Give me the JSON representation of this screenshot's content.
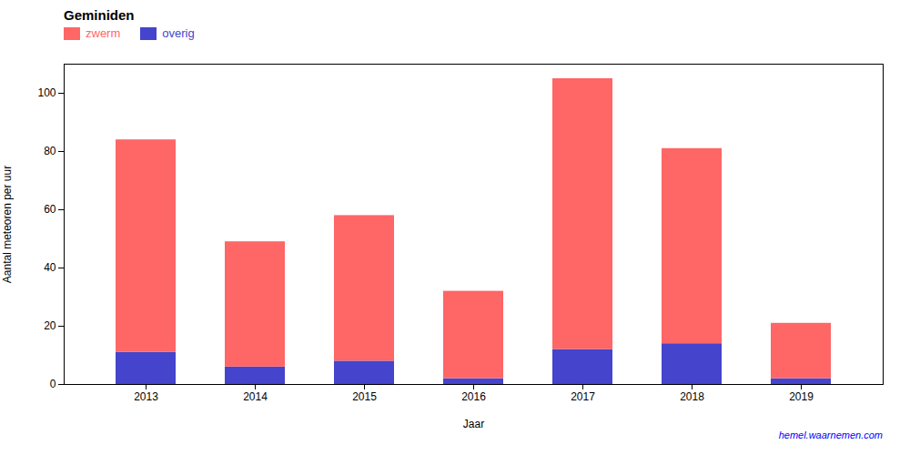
{
  "chart_data": {
    "type": "bar",
    "title": "Geminiden",
    "xlabel": "Jaar",
    "ylabel": "Aantal meteoren per uur",
    "categories": [
      "2013",
      "2014",
      "2015",
      "2016",
      "2017",
      "2018",
      "2019"
    ],
    "series": [
      {
        "name": "overig",
        "color": "#4444CC",
        "values": [
          11,
          6,
          8,
          2,
          12,
          14,
          2
        ]
      },
      {
        "name": "zwerm",
        "color": "#FF6666",
        "values": [
          73,
          43,
          50,
          30,
          93,
          67,
          19
        ]
      }
    ],
    "stacked": true,
    "ylim": [
      0,
      110
    ],
    "yticks": [
      0,
      20,
      40,
      60,
      80,
      100
    ],
    "grid": false,
    "legend": "upper left",
    "annotations": [
      {
        "text": "hemel.waarnemen.com",
        "color": "blue"
      }
    ]
  }
}
